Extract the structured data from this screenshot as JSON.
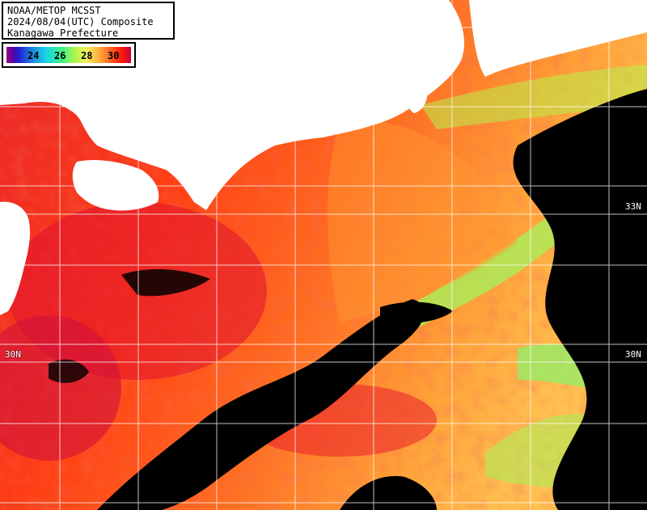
{
  "header": {
    "line1": "NOAA/METOP MCSST",
    "line2": "2024/08/04(UTC) Composite",
    "line3": "Kanagawa Prefecture"
  },
  "legend": {
    "ticks": [
      "24",
      "26",
      "28",
      "30"
    ],
    "colors": [
      "#5a00a8",
      "#1f7fe0",
      "#3cf08a",
      "#f5f060",
      "#ffb040",
      "#ff4a10",
      "#e0103a"
    ]
  },
  "grid_labels": {
    "lat_33": "33N",
    "lat_30_left": "30N",
    "lat_30_right": "30N"
  },
  "map_colors": {
    "land": "#ffffff",
    "cloud": "#000000",
    "warm_sea": "#ff3a14",
    "hot_sea": "#e8122e",
    "mild_sea": "#ff8a2a",
    "cool_sea": "#8ff06a",
    "grid": "#ffffff"
  }
}
